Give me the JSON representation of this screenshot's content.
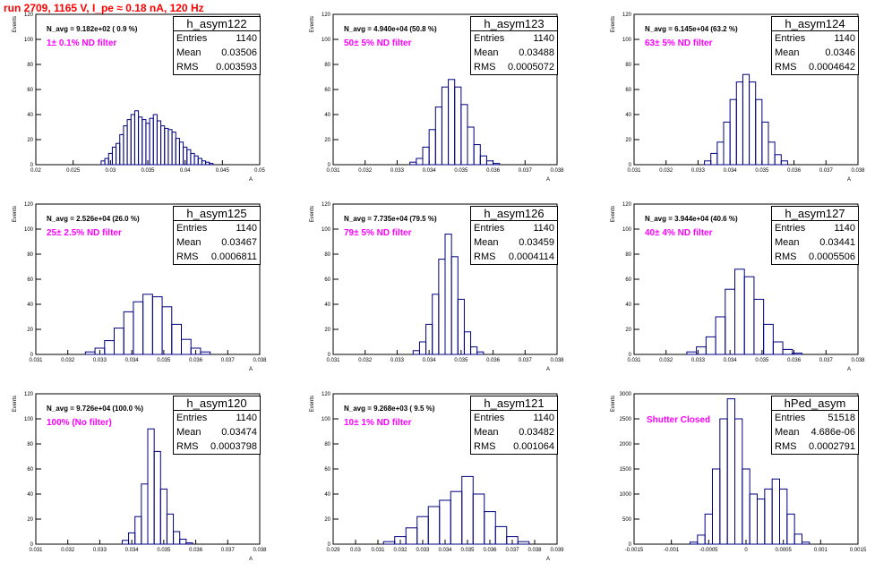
{
  "title": "run 2709,  1165 V, I_pe ≈ 0.18 nA, 120 Hz",
  "colors": {
    "title": "#ff0000",
    "histogram": "#00007f",
    "annotation": "#ff00ff"
  },
  "chart_data": [
    {
      "type": "histogram",
      "name": "h_asym122",
      "stats": {
        "entries": "1140",
        "mean": "0.03506",
        "rms": "0.003593"
      },
      "navg": "N_avg = 9.182e+02 ( 0.9 %)",
      "filter": "1± 0.1% ND filter",
      "ylabel": "Events",
      "xlabel": "A",
      "xlim": [
        0.02,
        0.05
      ],
      "ylim": [
        0,
        120
      ],
      "xticks": [
        "0.02",
        "0.025",
        "0.03",
        "0.035",
        "0.04",
        "0.045",
        "0.05"
      ],
      "yticks": [
        "0",
        "20",
        "40",
        "60",
        "80",
        "100",
        "120"
      ],
      "x": [
        0.029,
        0.0295,
        0.03,
        0.0305,
        0.031,
        0.0315,
        0.032,
        0.0325,
        0.033,
        0.0335,
        0.034,
        0.0345,
        0.035,
        0.0355,
        0.036,
        0.0365,
        0.037,
        0.0375,
        0.038,
        0.0385,
        0.039,
        0.0395,
        0.04,
        0.0405,
        0.041,
        0.0415,
        0.042,
        0.0425,
        0.043,
        0.0435
      ],
      "values": [
        3,
        5,
        9,
        14,
        17,
        24,
        31,
        36,
        40,
        43,
        38,
        36,
        33,
        37,
        40,
        35,
        31,
        29,
        28,
        26,
        21,
        18,
        14,
        12,
        9,
        7,
        5,
        3,
        2,
        1
      ]
    },
    {
      "type": "histogram",
      "name": "h_asym123",
      "stats": {
        "entries": "1140",
        "mean": "0.03488",
        "rms": "0.0005072"
      },
      "navg": "N_avg = 4.940e+04 (50.8 %)",
      "filter": "50± 5% ND filter",
      "ylabel": "Events",
      "xlabel": "A",
      "xlim": [
        0.031,
        0.038
      ],
      "ylim": [
        0,
        120
      ],
      "xticks": [
        "0.031",
        "0.032",
        "0.033",
        "0.034",
        "0.035",
        "0.036",
        "0.037",
        "0.038"
      ],
      "yticks": [
        "0",
        "20",
        "40",
        "60",
        "80",
        "100",
        "120"
      ],
      "x": [
        0.0335,
        0.0337,
        0.0339,
        0.0341,
        0.0343,
        0.0345,
        0.0347,
        0.0349,
        0.0351,
        0.0353,
        0.0355,
        0.0357,
        0.0359,
        0.0361
      ],
      "values": [
        2,
        5,
        14,
        28,
        46,
        62,
        68,
        62,
        48,
        30,
        16,
        7,
        3,
        1
      ]
    },
    {
      "type": "histogram",
      "name": "h_asym124",
      "stats": {
        "entries": "1140",
        "mean": "0.0346",
        "rms": "0.0004642"
      },
      "navg": "N_avg = 6.145e+04 (63.2 %)",
      "filter": "63± 5% ND filter",
      "ylabel": "Events",
      "xlabel": "A",
      "xlim": [
        0.031,
        0.038
      ],
      "ylim": [
        0,
        120
      ],
      "xticks": [
        "0.031",
        "0.032",
        "0.033",
        "0.034",
        "0.035",
        "0.036",
        "0.037",
        "0.038"
      ],
      "yticks": [
        "0",
        "20",
        "40",
        "60",
        "80",
        "100",
        "120"
      ],
      "x": [
        0.0333,
        0.0335,
        0.0337,
        0.0339,
        0.0341,
        0.0343,
        0.0345,
        0.0347,
        0.0349,
        0.0351,
        0.0353,
        0.0355,
        0.0357
      ],
      "values": [
        3,
        9,
        18,
        34,
        52,
        66,
        72,
        66,
        52,
        34,
        18,
        8,
        3
      ]
    },
    {
      "type": "histogram",
      "name": "h_asym125",
      "stats": {
        "entries": "1140",
        "mean": "0.03467",
        "rms": "0.0006811"
      },
      "navg": "N_avg = 2.526e+04 (26.0 %)",
      "filter": "25± 2.5% ND filter",
      "ylabel": "Events",
      "xlabel": "A",
      "xlim": [
        0.031,
        0.038
      ],
      "ylim": [
        0,
        120
      ],
      "xticks": [
        "0.031",
        "0.032",
        "0.033",
        "0.034",
        "0.035",
        "0.036",
        "0.037",
        "0.038"
      ],
      "yticks": [
        "0",
        "20",
        "40",
        "60",
        "80",
        "100",
        "120"
      ],
      "x": [
        0.0327,
        0.033,
        0.0333,
        0.0336,
        0.0339,
        0.0342,
        0.0345,
        0.0348,
        0.0351,
        0.0354,
        0.0357,
        0.036,
        0.0363
      ],
      "values": [
        2,
        5,
        11,
        21,
        34,
        42,
        48,
        46,
        38,
        24,
        12,
        5,
        2
      ]
    },
    {
      "type": "histogram",
      "name": "h_asym126",
      "stats": {
        "entries": "1140",
        "mean": "0.03459",
        "rms": "0.0004114"
      },
      "navg": "N_avg = 7.735e+04 (79.5 %)",
      "filter": "79± 5% ND filter",
      "ylabel": "Events",
      "xlabel": "A",
      "xlim": [
        0.031,
        0.038
      ],
      "ylim": [
        0,
        120
      ],
      "xticks": [
        "0.031",
        "0.032",
        "0.033",
        "0.034",
        "0.035",
        "0.036",
        "0.037",
        "0.038"
      ],
      "yticks": [
        "0",
        "20",
        "40",
        "60",
        "80",
        "100",
        "120"
      ],
      "x": [
        0.0336,
        0.0338,
        0.034,
        0.0342,
        0.0344,
        0.0346,
        0.0348,
        0.035,
        0.0352,
        0.0354,
        0.0356
      ],
      "values": [
        3,
        10,
        24,
        48,
        76,
        96,
        78,
        44,
        18,
        6,
        2
      ]
    },
    {
      "type": "histogram",
      "name": "h_asym127",
      "stats": {
        "entries": "1140",
        "mean": "0.03441",
        "rms": "0.0005506"
      },
      "navg": "N_avg = 3.944e+04 (40.6 %)",
      "filter": "40± 4% ND filter",
      "ylabel": "Events",
      "xlabel": "A",
      "xlim": [
        0.031,
        0.038
      ],
      "ylim": [
        0,
        120
      ],
      "xticks": [
        "0.031",
        "0.032",
        "0.033",
        "0.034",
        "0.035",
        "0.036",
        "0.037",
        "0.038"
      ],
      "yticks": [
        "0",
        "20",
        "40",
        "60",
        "80",
        "100",
        "120"
      ],
      "x": [
        0.0328,
        0.0331,
        0.0334,
        0.0337,
        0.034,
        0.0343,
        0.0346,
        0.0349,
        0.0352,
        0.0355,
        0.0358,
        0.0361
      ],
      "values": [
        2,
        6,
        14,
        30,
        52,
        68,
        62,
        44,
        24,
        10,
        4,
        1
      ]
    },
    {
      "type": "histogram",
      "name": "h_asym120",
      "stats": {
        "entries": "1140",
        "mean": "0.03474",
        "rms": "0.0003798"
      },
      "navg": "N_avg = 9.726e+04 (100.0 %)",
      "filter": "100% (No filter)",
      "ylabel": "Events",
      "xlabel": "A",
      "xlim": [
        0.031,
        0.038
      ],
      "ylim": [
        0,
        120
      ],
      "xticks": [
        "0.031",
        "0.032",
        "0.033",
        "0.034",
        "0.035",
        "0.036",
        "0.037",
        "0.038"
      ],
      "yticks": [
        "0",
        "20",
        "40",
        "60",
        "80",
        "100",
        "120"
      ],
      "x": [
        0.0338,
        0.034,
        0.0342,
        0.0344,
        0.0346,
        0.0348,
        0.035,
        0.0352,
        0.0354,
        0.0356,
        0.0358
      ],
      "values": [
        3,
        9,
        22,
        48,
        92,
        74,
        44,
        24,
        10,
        4,
        1
      ]
    },
    {
      "type": "histogram",
      "name": "h_asym121",
      "stats": {
        "entries": "1140",
        "mean": "0.03482",
        "rms": "0.001064"
      },
      "navg": "N_avg = 9.268e+03 ( 9.5 %)",
      "filter": "10± 1% ND filter",
      "ylabel": "Events",
      "xlabel": "A",
      "xlim": [
        0.029,
        0.039
      ],
      "ylim": [
        0,
        120
      ],
      "xticks": [
        "0.029",
        "0.03",
        "0.031",
        "0.032",
        "0.033",
        "0.034",
        "0.035",
        "0.036",
        "0.037",
        "0.038",
        "0.039"
      ],
      "yticks": [
        "0",
        "20",
        "40",
        "60",
        "80",
        "100",
        "120"
      ],
      "x": [
        0.0315,
        0.032,
        0.0325,
        0.033,
        0.0335,
        0.034,
        0.0345,
        0.035,
        0.0355,
        0.036,
        0.0365,
        0.037,
        0.0375
      ],
      "values": [
        2,
        6,
        13,
        22,
        30,
        35,
        42,
        54,
        40,
        26,
        14,
        6,
        2
      ]
    },
    {
      "type": "histogram",
      "name": "hPed_asym",
      "stats": {
        "entries": "51518",
        "mean": "4.686e-06",
        "rms": "0.0002791"
      },
      "navg": "",
      "filter": "Shutter Closed",
      "ylabel": "Events",
      "xlabel": "",
      "xlim": [
        -0.0015,
        0.0015
      ],
      "ylim": [
        0,
        3000
      ],
      "xticks": [
        "-0.0015",
        "-0.001",
        "-0.0005",
        "0",
        "0.0005",
        "0.001",
        "0.0015"
      ],
      "yticks": [
        "0",
        "500",
        "1000",
        "1500",
        "2000",
        "2500",
        "3000"
      ],
      "x": [
        -0.0007,
        -0.0006,
        -0.0005,
        -0.0004,
        -0.0003,
        -0.0002,
        -0.0001,
        0.0,
        0.0001,
        0.0002,
        0.0003,
        0.0004,
        0.0005,
        0.0006,
        0.0007,
        0.0008
      ],
      "values": [
        40,
        180,
        600,
        1500,
        2500,
        2900,
        2500,
        1500,
        1000,
        900,
        1100,
        1300,
        1100,
        600,
        200,
        40
      ]
    }
  ]
}
